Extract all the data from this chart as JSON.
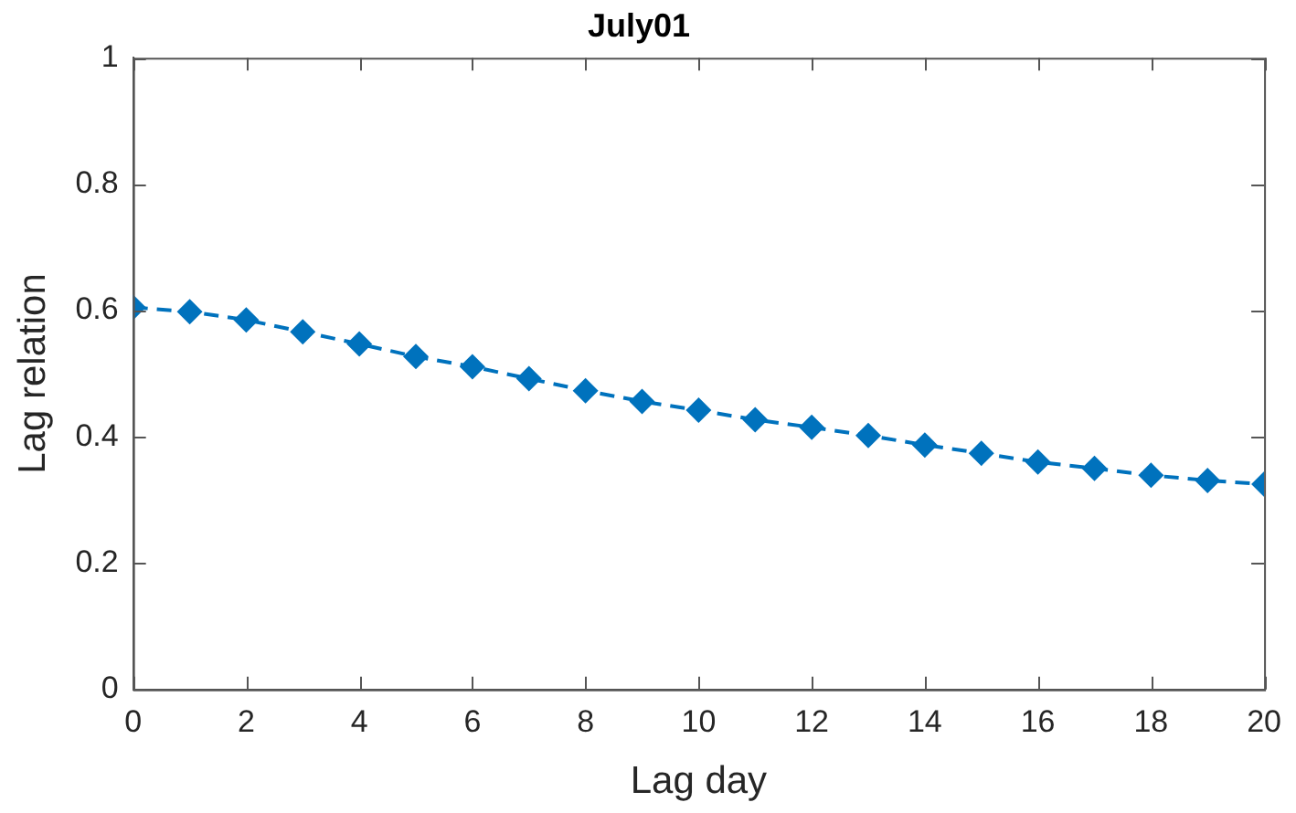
{
  "chart_data": {
    "type": "line",
    "title": "July01",
    "xlabel": "Lag day",
    "ylabel": "Lag relation",
    "x": [
      0,
      1,
      2,
      3,
      4,
      5,
      6,
      7,
      8,
      9,
      10,
      11,
      12,
      13,
      14,
      15,
      16,
      17,
      18,
      19,
      20
    ],
    "series": [
      {
        "color": "#0072bd",
        "values": [
          0.605,
          0.598,
          0.585,
          0.566,
          0.547,
          0.527,
          0.511,
          0.492,
          0.473,
          0.456,
          0.442,
          0.427,
          0.415,
          0.402,
          0.387,
          0.374,
          0.36,
          0.35,
          0.339,
          0.331,
          0.325
        ]
      }
    ],
    "xlim": [
      0,
      20
    ],
    "xticks": [
      0,
      2,
      4,
      6,
      8,
      10,
      12,
      14,
      16,
      18,
      20
    ],
    "ylim": [
      0,
      1
    ],
    "yticks": [
      0,
      0.2,
      0.4,
      0.6,
      0.8,
      1
    ],
    "grid": false,
    "legend": false,
    "marker": "diamond",
    "line_style": "dashed"
  }
}
